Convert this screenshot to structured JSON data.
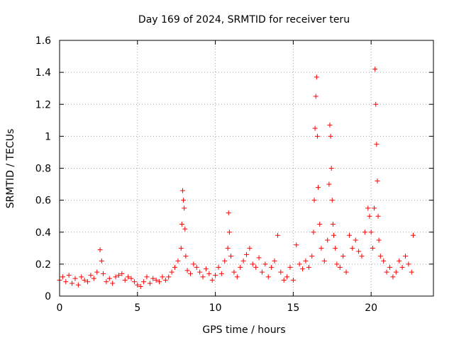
{
  "chart_data": {
    "type": "scatter",
    "title": "Day 169 of 2024, SRMTID for receiver teru",
    "xlabel": "GPS time / hours",
    "ylabel": "SRMTID / TECUs",
    "xlim": [
      0,
      24
    ],
    "ylim": [
      0,
      1.6
    ],
    "xticks": [
      0,
      5,
      10,
      15,
      20
    ],
    "xtick_labels": [
      "0",
      "5",
      "10",
      "15",
      "20"
    ],
    "yticks": [
      0,
      0.2,
      0.4,
      0.6,
      0.8,
      1.0,
      1.2,
      1.4,
      1.6
    ],
    "ytick_labels": [
      "0",
      "0.2",
      "0.4",
      "0.6",
      "0.8",
      "1",
      "1.2",
      "1.4",
      "1.6"
    ],
    "grid": true,
    "marker": "+",
    "color": "#ff0000",
    "series": [
      {
        "name": "SRMTID",
        "x": [
          0.0,
          0.2,
          0.4,
          0.6,
          0.8,
          1.0,
          1.2,
          1.4,
          1.6,
          1.8,
          2.0,
          2.2,
          2.4,
          2.6,
          2.7,
          2.8,
          3.0,
          3.2,
          3.4,
          3.6,
          3.8,
          4.0,
          4.2,
          4.4,
          4.6,
          4.8,
          5.0,
          5.2,
          5.4,
          5.6,
          5.8,
          6.0,
          6.2,
          6.4,
          6.6,
          6.8,
          7.0,
          7.2,
          7.4,
          7.6,
          7.8,
          7.85,
          7.9,
          7.95,
          8.0,
          8.05,
          8.1,
          8.2,
          8.4,
          8.6,
          8.8,
          9.0,
          9.2,
          9.4,
          9.6,
          9.8,
          10.0,
          10.2,
          10.4,
          10.6,
          10.8,
          10.85,
          10.9,
          11.0,
          11.2,
          11.4,
          11.6,
          11.8,
          12.0,
          12.2,
          12.4,
          12.6,
          12.8,
          13.0,
          13.2,
          13.4,
          13.6,
          13.8,
          14.0,
          14.2,
          14.4,
          14.6,
          14.8,
          15.0,
          15.2,
          15.4,
          15.6,
          15.8,
          16.0,
          16.2,
          16.3,
          16.35,
          16.4,
          16.45,
          16.5,
          16.55,
          16.6,
          16.7,
          16.8,
          17.0,
          17.2,
          17.3,
          17.35,
          17.4,
          17.45,
          17.5,
          17.55,
          17.6,
          17.7,
          17.8,
          18.0,
          18.2,
          18.4,
          18.6,
          18.8,
          19.0,
          19.2,
          19.4,
          19.6,
          19.8,
          19.9,
          20.0,
          20.1,
          20.2,
          20.25,
          20.3,
          20.35,
          20.4,
          20.45,
          20.5,
          20.6,
          20.8,
          21.0,
          21.2,
          21.4,
          21.6,
          21.8,
          22.0,
          22.2,
          22.4,
          22.6,
          22.7
        ],
        "y": [
          0.1,
          0.12,
          0.09,
          0.13,
          0.08,
          0.11,
          0.07,
          0.12,
          0.1,
          0.09,
          0.13,
          0.11,
          0.15,
          0.29,
          0.22,
          0.14,
          0.09,
          0.11,
          0.08,
          0.12,
          0.13,
          0.14,
          0.1,
          0.12,
          0.11,
          0.09,
          0.07,
          0.06,
          0.09,
          0.12,
          0.08,
          0.11,
          0.1,
          0.09,
          0.12,
          0.1,
          0.12,
          0.15,
          0.18,
          0.22,
          0.3,
          0.45,
          0.66,
          0.6,
          0.55,
          0.42,
          0.25,
          0.16,
          0.14,
          0.2,
          0.18,
          0.15,
          0.12,
          0.17,
          0.14,
          0.1,
          0.13,
          0.18,
          0.14,
          0.22,
          0.3,
          0.52,
          0.4,
          0.25,
          0.15,
          0.12,
          0.18,
          0.22,
          0.26,
          0.3,
          0.2,
          0.18,
          0.24,
          0.15,
          0.2,
          0.12,
          0.18,
          0.22,
          0.38,
          0.15,
          0.1,
          0.12,
          0.18,
          0.1,
          0.32,
          0.2,
          0.17,
          0.22,
          0.18,
          0.25,
          0.4,
          0.6,
          1.05,
          1.25,
          1.37,
          1.0,
          0.68,
          0.45,
          0.3,
          0.22,
          0.35,
          0.7,
          1.07,
          1.0,
          0.8,
          0.6,
          0.45,
          0.38,
          0.3,
          0.2,
          0.18,
          0.25,
          0.15,
          0.38,
          0.3,
          0.35,
          0.28,
          0.25,
          0.4,
          0.55,
          0.5,
          0.4,
          0.3,
          0.55,
          1.42,
          1.2,
          0.95,
          0.72,
          0.5,
          0.35,
          0.25,
          0.22,
          0.15,
          0.18,
          0.12,
          0.15,
          0.22,
          0.18,
          0.25,
          0.2,
          0.15,
          0.38
        ]
      }
    ]
  }
}
